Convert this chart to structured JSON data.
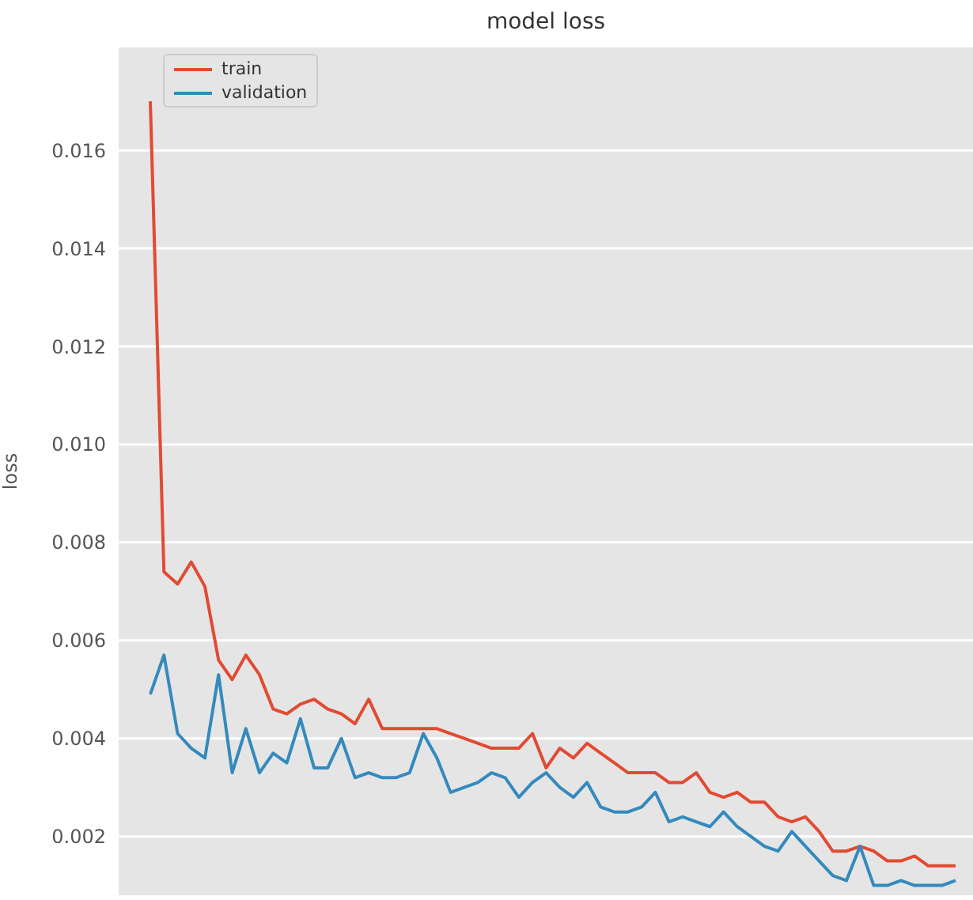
{
  "chart_data": {
    "type": "line",
    "title": "model loss",
    "ylabel": "loss",
    "categories": [
      null,
      null,
      null,
      null,
      null,
      null,
      null,
      null,
      null,
      null,
      null,
      null,
      null,
      null,
      null,
      null,
      null,
      null,
      null,
      null,
      null,
      null,
      null,
      null,
      null,
      null,
      null,
      null,
      null,
      null,
      null,
      null,
      null,
      null,
      null,
      null,
      null,
      null,
      null,
      null,
      null,
      null,
      null,
      null,
      null,
      null,
      null,
      null,
      null,
      null,
      null,
      null,
      null,
      null,
      null,
      null,
      null,
      null,
      null,
      null
    ],
    "ylim": [
      0.0008,
      0.0181
    ],
    "yticks": [
      {
        "value": 0.002,
        "label": "0.002"
      },
      {
        "value": 0.004,
        "label": "0.004"
      },
      {
        "value": 0.006,
        "label": "0.006"
      },
      {
        "value": 0.008,
        "label": "0.008"
      },
      {
        "value": 0.01,
        "label": "0.010"
      },
      {
        "value": 0.012,
        "label": "0.012"
      },
      {
        "value": 0.014,
        "label": "0.014"
      },
      {
        "value": 0.016,
        "label": "0.016"
      }
    ],
    "series": [
      {
        "name": "train",
        "color": "#e24a33",
        "values": [
          0.017,
          0.0074,
          0.00715,
          0.0076,
          0.0071,
          0.0056,
          0.0052,
          0.0057,
          0.0053,
          0.0046,
          0.0045,
          0.0047,
          0.0048,
          0.0046,
          0.0045,
          0.0043,
          0.0048,
          0.0042,
          0.0042,
          0.0042,
          0.0042,
          0.0042,
          0.0041,
          0.004,
          0.0039,
          0.0038,
          0.0038,
          0.0038,
          0.0041,
          0.0034,
          0.0038,
          0.0036,
          0.0039,
          0.0037,
          0.0035,
          0.0033,
          0.0033,
          0.0033,
          0.0031,
          0.0031,
          0.0033,
          0.0029,
          0.0028,
          0.0029,
          0.0027,
          0.0027,
          0.0024,
          0.0023,
          0.0024,
          0.0021,
          0.0017,
          0.0017,
          0.0018,
          0.0017,
          0.0015,
          0.0015,
          0.0016,
          0.0014,
          0.0014,
          0.0014
        ]
      },
      {
        "name": "validation",
        "color": "#348abd",
        "values": [
          0.0049,
          0.0057,
          0.0041,
          0.0038,
          0.0036,
          0.0053,
          0.0033,
          0.0042,
          0.0033,
          0.0037,
          0.0035,
          0.0044,
          0.0034,
          0.0034,
          0.004,
          0.0032,
          0.0033,
          0.0032,
          0.0032,
          0.0033,
          0.0041,
          0.0036,
          0.0029,
          0.003,
          0.0031,
          0.0033,
          0.0032,
          0.0028,
          0.0031,
          0.0033,
          0.003,
          0.0028,
          0.0031,
          0.0026,
          0.0025,
          0.0025,
          0.0026,
          0.0029,
          0.0023,
          0.0024,
          0.0023,
          0.0022,
          0.0025,
          0.0022,
          0.002,
          0.0018,
          0.0017,
          0.0021,
          0.0018,
          0.0015,
          0.0012,
          0.0011,
          0.0018,
          0.001,
          0.001,
          0.0011,
          0.001,
          0.001,
          0.001,
          0.0011
        ]
      }
    ],
    "grid": true,
    "legend": "top left",
    "tick_labels": "y",
    "marker": "none",
    "line_style": "solid"
  }
}
